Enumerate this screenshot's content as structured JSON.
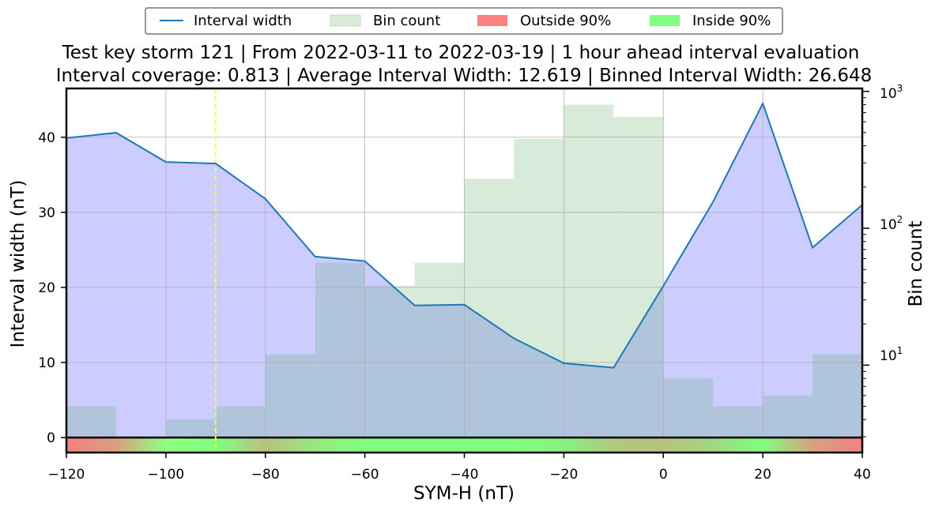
{
  "chart_data": {
    "type": "line",
    "title_line1": "Test key storm 121 | From 2022-03-11 to 2022-03-19 | 1 hour ahead interval evaluation",
    "title_line2": "Interval coverage: 0.813 | Average Interval Width: 12.619 | Binned Interval Width: 26.648",
    "xlabel": "SYM-H (nT)",
    "ylabel": "Interval width (nT)",
    "y2label": "Bin count",
    "xlim": [
      -120,
      40
    ],
    "ylim": [
      -2,
      46.5
    ],
    "y2lim_log": [
      2.3,
      1050
    ],
    "y2scale": "log",
    "x_ticks": [
      -120,
      -100,
      -80,
      -60,
      -40,
      -20,
      0,
      20,
      40
    ],
    "y_ticks": [
      0,
      10,
      20,
      30,
      40
    ],
    "y2_ticks": [
      "10^1",
      "10^2",
      "10^3"
    ],
    "grid": true,
    "legend_placement": "top-center",
    "legend": [
      {
        "label": "Interval width",
        "kind": "line",
        "color": "#1f77b4"
      },
      {
        "label": "Bin count",
        "kind": "patch",
        "color": "#d8ebd8"
      },
      {
        "label": "Outside 90%",
        "kind": "patch",
        "color": "#ff8080"
      },
      {
        "label": "Inside 90%",
        "kind": "patch",
        "color": "#80ff80"
      }
    ],
    "series": [
      {
        "name": "Interval width",
        "x": [
          -120,
          -110,
          -100,
          -90,
          -80,
          -70,
          -60,
          -50,
          -40,
          -30,
          -20,
          -10,
          0,
          10,
          20,
          30,
          40
        ],
        "values": [
          39.9,
          40.6,
          36.7,
          36.5,
          31.8,
          24.1,
          23.5,
          17.6,
          17.7,
          13.2,
          9.9,
          9.3,
          20.2,
          31.4,
          44.5,
          25.3,
          31.0
        ]
      },
      {
        "name": "Bin count",
        "bin_edges": [
          -120,
          -110,
          -100,
          -90,
          -80,
          -70,
          -60,
          -50,
          -40,
          -30,
          -20,
          -10,
          0,
          10,
          20,
          30,
          40
        ],
        "values": [
          5,
          3,
          4,
          5,
          12,
          56,
          38,
          56,
          230,
          450,
          800,
          650,
          8,
          5,
          6,
          12
        ]
      }
    ],
    "reference_line_x": -90,
    "colors": {
      "line": "#1f77b4",
      "area": "#ccccff",
      "bins": "#d8ebd8",
      "bins_overlap": "#b0c4dc",
      "outside": "#ff8080",
      "inside": "#80ff80",
      "reference": "#ffff33",
      "grid": "#b0b0b0"
    },
    "coverage_strip": [
      {
        "x": -120,
        "color": "#f28080"
      },
      {
        "x": -110,
        "color": "#d8a080"
      },
      {
        "x": -100,
        "color": "#90ff80"
      },
      {
        "x": -90,
        "color": "#80ff80"
      },
      {
        "x": -80,
        "color": "#b8c080"
      },
      {
        "x": -70,
        "color": "#98e880"
      },
      {
        "x": -60,
        "color": "#80ff80"
      },
      {
        "x": -50,
        "color": "#80ff80"
      },
      {
        "x": -40,
        "color": "#80ff80"
      },
      {
        "x": -30,
        "color": "#80ff80"
      },
      {
        "x": -20,
        "color": "#88f080"
      },
      {
        "x": -10,
        "color": "#b0c880"
      },
      {
        "x": 0,
        "color": "#b8c080"
      },
      {
        "x": 10,
        "color": "#a0d880"
      },
      {
        "x": 20,
        "color": "#80ff80"
      },
      {
        "x": 30,
        "color": "#d8a080"
      },
      {
        "x": 40,
        "color": "#f28080"
      }
    ]
  }
}
